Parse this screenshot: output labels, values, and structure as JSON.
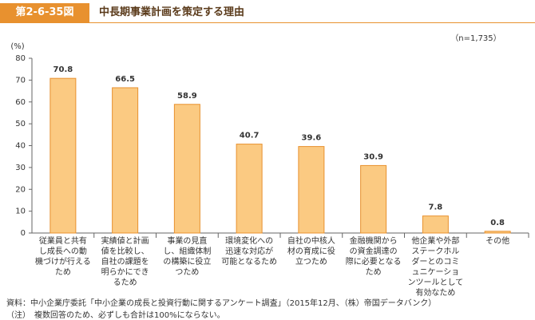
{
  "header": {
    "figure_number": "第2-6-35図",
    "title": "中長期事業計画を策定する理由"
  },
  "chart_data": {
    "type": "bar",
    "note": "（n=1,735）",
    "y_label": "(%)",
    "categories": [
      "従業員と共有し成長への動機づけが行えるため",
      "実績値と計画値を比較し、自社の課題を明らかにできるため",
      "事業の見直し、組織体制の構築に役立つため",
      "環境変化への迅速な対応が可能となるため",
      "自社の中核人材の育成に役立つため",
      "金融機関からの資金調達の際に必要となるため",
      "他企業や外部ステークホルダーとのコミュニケーションツールとして有効なため",
      "その他"
    ],
    "values": [
      70.8,
      66.5,
      58.9,
      40.7,
      39.6,
      30.9,
      7.8,
      0.8
    ],
    "color": "#fbca82",
    "edge_color": "#e8912f",
    "ylim": [
      0,
      80
    ],
    "yticks": [
      0,
      10,
      20,
      30,
      40,
      50,
      60,
      70,
      80
    ]
  },
  "footnotes": [
    "資料：中小企業庁委託「中小企業の成長と投資行動に関するアンケート調査」（2015年12月、（株）帝国データバンク）",
    "（注）　複数回答のため、必ずしも合計は100%にならない。"
  ]
}
